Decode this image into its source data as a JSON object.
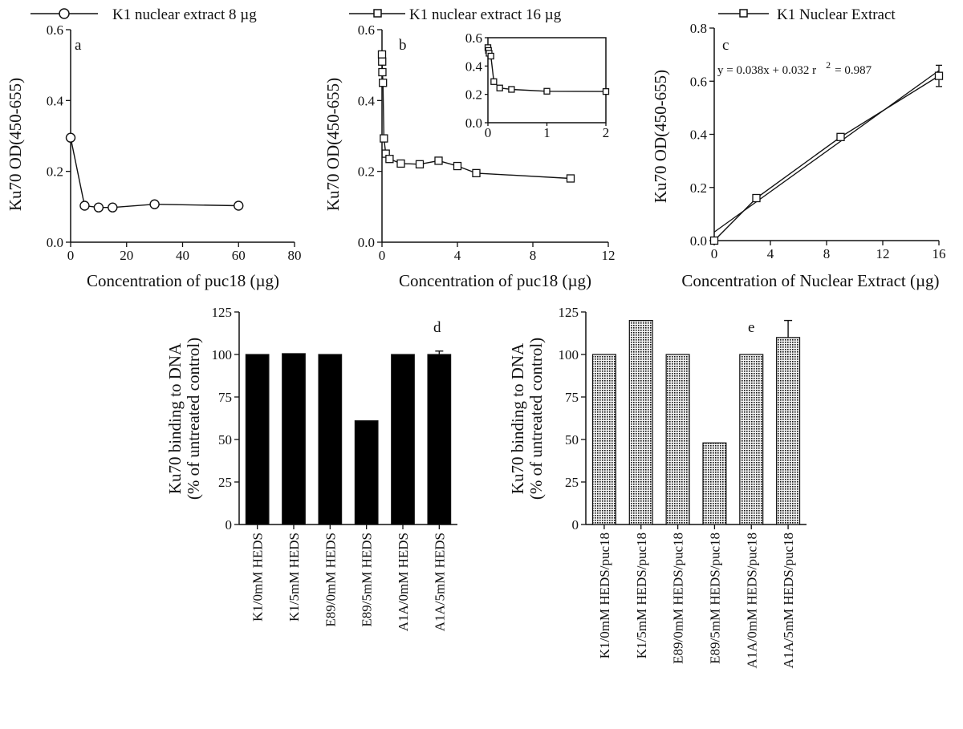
{
  "chart_data": [
    {
      "id": "a",
      "type": "line",
      "panel_label": "a",
      "legend": "K1 nuclear extract 8 µg",
      "xlabel": "Concentration of puc18 (µg)",
      "ylabel": "Ku70 OD(450-655)",
      "xlim": [
        0,
        80
      ],
      "ylim": [
        0,
        0.6
      ],
      "xticks": [
        0,
        20,
        40,
        60,
        80
      ],
      "yticks": [
        "0.0",
        "0.2",
        "0.4",
        "0.6"
      ],
      "marker": "circle",
      "series": [
        {
          "x": [
            0,
            5,
            10,
            15,
            30,
            60
          ],
          "y": [
            0.295,
            0.103,
            0.098,
            0.098,
            0.107,
            0.103
          ]
        }
      ]
    },
    {
      "id": "b",
      "type": "line",
      "panel_label": "b",
      "legend": "K1 nuclear extract 16 µg",
      "xlabel": "Concentration of puc18 (µg)",
      "ylabel": "Ku70 OD(450-655)",
      "xlim": [
        0,
        12
      ],
      "ylim": [
        0,
        0.6
      ],
      "xticks": [
        0,
        4,
        8,
        12
      ],
      "yticks": [
        "0.0",
        "0.2",
        "0.4",
        "0.6"
      ],
      "marker": "square",
      "series": [
        {
          "x": [
            0,
            0.01,
            0.02,
            0.05,
            0.1,
            0.2,
            0.4,
            1,
            2,
            3,
            4,
            5,
            10
          ],
          "y": [
            0.53,
            0.51,
            0.48,
            0.45,
            0.293,
            0.25,
            0.235,
            0.222,
            0.22,
            0.23,
            0.215,
            0.195,
            0.18
          ]
        }
      ],
      "inset": {
        "xlim": [
          0,
          2
        ],
        "ylim": [
          0,
          0.6
        ],
        "xticks": [
          "0",
          "1",
          "2"
        ],
        "yticks": [
          "0.0",
          "0.2",
          "0.4",
          "0.6"
        ],
        "series": [
          {
            "x": [
              0,
              0.01,
              0.02,
              0.05,
              0.1,
              0.2,
              0.4,
              1,
              2
            ],
            "y": [
              0.53,
              0.51,
              0.49,
              0.47,
              0.29,
              0.245,
              0.235,
              0.222,
              0.22
            ]
          }
        ]
      }
    },
    {
      "id": "c",
      "type": "line",
      "panel_label": "c",
      "legend": "K1 Nuclear Extract",
      "xlabel": "Concentration of Nuclear Extract (µg)",
      "ylabel": "Ku70 OD(450-655)",
      "xlim": [
        0,
        16
      ],
      "ylim": [
        0,
        0.8
      ],
      "xticks": [
        0,
        4,
        8,
        12,
        16
      ],
      "yticks": [
        "0.0",
        "0.2",
        "0.4",
        "0.6",
        "0.8"
      ],
      "marker": "square",
      "annotation_eq": "y = 0.038x + 0.032   r",
      "annotation_sup": "2",
      "annotation_r2": "= 0.987",
      "fit": {
        "slope": 0.038,
        "intercept": 0.032
      },
      "series": [
        {
          "x": [
            0,
            3,
            9,
            16
          ],
          "y": [
            0.0,
            0.16,
            0.39,
            0.62
          ],
          "err": [
            0,
            0,
            0,
            0.04
          ]
        }
      ]
    },
    {
      "id": "d",
      "type": "bar",
      "panel_label": "d",
      "ylabel_line1": "Ku70 binding to DNA",
      "ylabel_line2": "(% of untreated control)",
      "ylim": [
        0,
        125
      ],
      "yticks": [
        "0",
        "25",
        "50",
        "75",
        "100",
        "125"
      ],
      "style": "solid",
      "categories": [
        "K1/0mM HEDS",
        "K1/5mM HEDS",
        "E89/0mM HEDS",
        "E89/5mM HEDS",
        "A1A/0mM HEDS",
        "A1A/5mM HEDS"
      ],
      "values": [
        100,
        100.5,
        100,
        61,
        100,
        100
      ],
      "errors": [
        0,
        0,
        0,
        0,
        0,
        2
      ]
    },
    {
      "id": "e",
      "type": "bar",
      "panel_label": "e",
      "ylabel_line1": "Ku70 binding to DNA",
      "ylabel_line2": "(% of untreated control)",
      "ylim": [
        0,
        125
      ],
      "yticks": [
        "0",
        "25",
        "50",
        "75",
        "100",
        "125"
      ],
      "style": "dotted",
      "categories": [
        "K1/0mM HEDS/puc18",
        "K1/5mM HEDS/puc18",
        "E89/0mM HEDS/puc18",
        "E89/5mM HEDS/puc18",
        "A1A/0mM HEDS/puc18",
        "A1A/5mM HEDS/puc18"
      ],
      "values": [
        100,
        120,
        100,
        48,
        100,
        110
      ],
      "errors": [
        0,
        0,
        0,
        0,
        0,
        10
      ]
    }
  ]
}
